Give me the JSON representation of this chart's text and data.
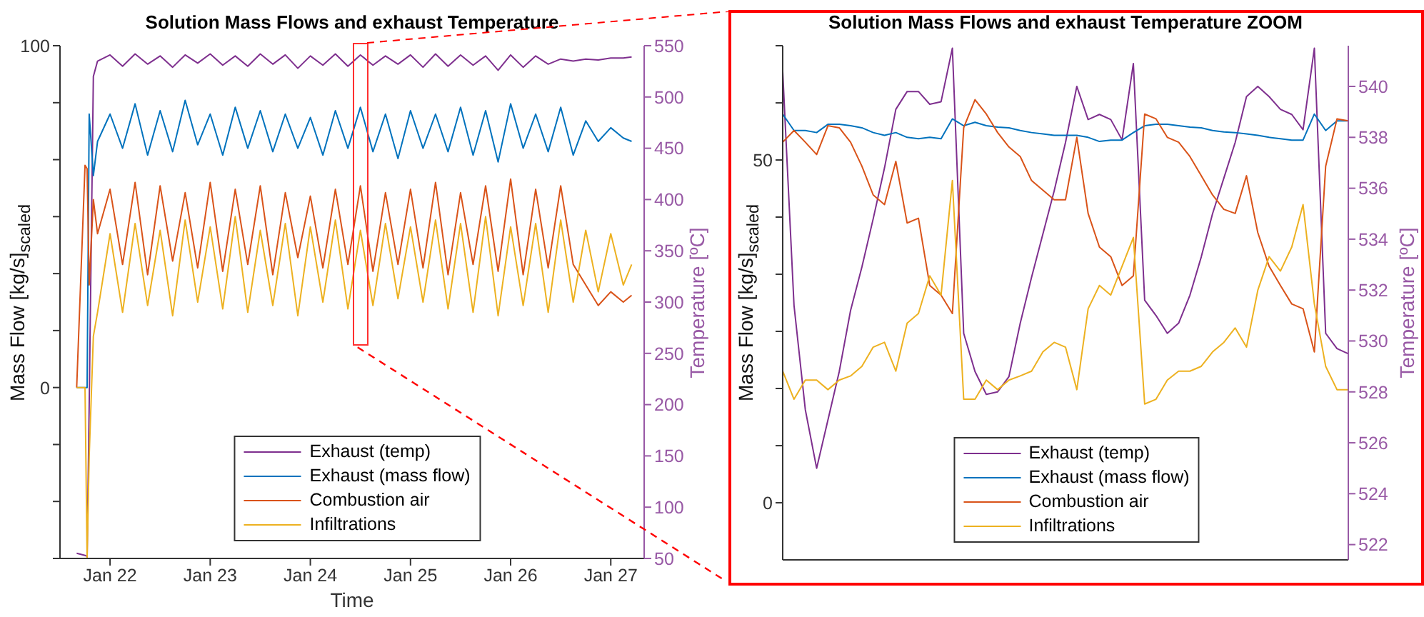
{
  "chart_data": [
    {
      "type": "line",
      "title": "Solution Mass Flows and exhaust Temperature",
      "xlabel": "Time",
      "ylabel": "Mass Flow [kg/s]$_{scaled}$",
      "y2label": "Temperature [ºC]",
      "legend": "bottom",
      "x": [
        "--01-21T16:00",
        "--01-21T18:00",
        "--01-21T18:30",
        "--01-21T19:00",
        "--01-21T20:00",
        "--01-21T21:00",
        "--01-22T00:00",
        "--01-22T03:00",
        "--01-22T06:00",
        "--01-22T09:00",
        "--01-22T12:00",
        "--01-22T15:00",
        "--01-22T18:00",
        "--01-22T21:00",
        "--01-23T00:00",
        "--01-23T03:00",
        "--01-23T06:00",
        "--01-23T09:00",
        "--01-23T12:00",
        "--01-23T15:00",
        "--01-23T18:00",
        "--01-23T21:00",
        "--01-24T00:00",
        "--01-24T03:00",
        "--01-24T06:00",
        "--01-24T09:00",
        "--01-24T12:00",
        "--01-24T15:00",
        "--01-24T18:00",
        "--01-24T21:00",
        "--01-25T00:00",
        "--01-25T03:00",
        "--01-25T06:00",
        "--01-25T09:00",
        "--01-25T12:00",
        "--01-25T15:00",
        "--01-25T18:00",
        "--01-25T21:00",
        "--01-26T00:00",
        "--01-26T03:00",
        "--01-26T06:00",
        "--01-26T09:00",
        "--01-26T12:00",
        "--01-26T15:00",
        "--01-26T18:00",
        "--01-26T21:00",
        "--01-27T00:00",
        "--01-27T03:00",
        "--01-27T05:00"
      ],
      "xlim": [
        "--01-21T12:00",
        "--01-27T08:00"
      ],
      "xticks": [
        {
          "value": "--01-22",
          "label": "Jan 22"
        },
        {
          "value": "--01-23",
          "label": "Jan 23"
        },
        {
          "value": "--01-24",
          "label": "Jan 24"
        },
        {
          "value": "--01-25",
          "label": "Jan 25"
        },
        {
          "value": "--01-26",
          "label": "Jan 26"
        },
        {
          "value": "--01-27",
          "label": "Jan 27"
        }
      ],
      "ylim": [
        -50,
        100
      ],
      "yticks": [
        {
          "value": -50,
          "label": null
        },
        {
          "value": -33.33,
          "label": null
        },
        {
          "value": -16.67,
          "label": null
        },
        0,
        {
          "value": 16.67,
          "label": null
        },
        {
          "value": 33.33,
          "label": null
        },
        {
          "value": 50,
          "label": null
        },
        {
          "value": 66.67,
          "label": null
        },
        {
          "value": 83.33,
          "label": null
        },
        100
      ],
      "y2lim": [
        50,
        550
      ],
      "y2ticks": [
        50,
        100,
        150,
        200,
        250,
        300,
        350,
        400,
        450,
        500,
        550
      ],
      "series": [
        {
          "name": "Exhaust (temp)",
          "color": "#7e2f8e",
          "axis": "y2",
          "values": [
            55,
            53,
            52,
            200,
            520,
            535,
            541,
            530,
            542,
            532,
            540,
            529,
            541,
            533,
            542,
            531,
            540,
            530,
            542,
            532,
            541,
            528,
            540,
            531,
            542,
            530,
            541,
            531,
            540,
            532,
            541,
            529,
            542,
            530,
            541,
            531,
            540,
            526,
            541,
            529,
            540,
            532,
            537,
            535,
            537,
            536,
            538,
            538,
            539
          ]
        },
        {
          "name": "Exhaust (mass flow)",
          "color": "#0072bd",
          "values": [
            0,
            0,
            0,
            80,
            62,
            72,
            80,
            70,
            83,
            68,
            81,
            69,
            84,
            71,
            80,
            68,
            82,
            70,
            81,
            69,
            80,
            70,
            79,
            68,
            81,
            70,
            82,
            69,
            80,
            67,
            81,
            70,
            80,
            69,
            82,
            68,
            81,
            66,
            83,
            70,
            80,
            69,
            82,
            68,
            78,
            72,
            76,
            73,
            72
          ]
        },
        {
          "name": "Combustion air",
          "color": "#d95319",
          "values": [
            0,
            65,
            64,
            30,
            55,
            45,
            58,
            36,
            60,
            33,
            59,
            37,
            57,
            35,
            60,
            34,
            58,
            36,
            59,
            33,
            57,
            38,
            56,
            35,
            58,
            36,
            59,
            34,
            57,
            36,
            58,
            35,
            60,
            33,
            57,
            36,
            59,
            34,
            61,
            33,
            58,
            35,
            59,
            36,
            30,
            24,
            28,
            25,
            27
          ]
        },
        {
          "name": "Infiltrations",
          "color": "#edb120",
          "values": [
            0,
            0,
            -50,
            -20,
            15,
            22,
            45,
            22,
            48,
            24,
            46,
            21,
            49,
            25,
            47,
            23,
            50,
            22,
            46,
            24,
            48,
            21,
            47,
            25,
            49,
            23,
            46,
            24,
            48,
            26,
            47,
            25,
            49,
            23,
            48,
            22,
            50,
            21,
            47,
            24,
            48,
            22,
            49,
            25,
            46,
            28,
            45,
            30,
            36
          ]
        }
      ]
    },
    {
      "type": "line",
      "title": "Solution Mass Flows and exhaust Temperature ZOOM",
      "ylabel": "Mass Flow [kg/s]$_{scaled}$",
      "y2label": "Temperature [ºC]",
      "legend": "bottom",
      "categories": [
        null,
        null,
        null,
        null,
        null,
        null,
        null,
        null,
        null,
        null,
        null,
        null,
        null,
        null,
        null,
        null,
        null,
        null,
        null,
        null,
        null,
        null,
        null,
        null,
        null,
        null,
        null,
        null,
        null,
        null,
        null,
        null,
        null,
        null,
        null,
        null,
        null,
        null,
        null,
        null,
        null,
        null,
        null,
        null,
        null,
        null,
        null,
        null,
        null,
        null,
        null
      ],
      "ylim": [
        -8.33,
        66.67
      ],
      "yticks": [
        0,
        {
          "value": 8.33,
          "label": null
        },
        {
          "value": 16.67,
          "label": null
        },
        {
          "value": 25,
          "label": null
        },
        {
          "value": 33.33,
          "label": null
        },
        {
          "value": 41.67,
          "label": null
        },
        50,
        {
          "value": 58.33,
          "label": null
        },
        {
          "value": 66.67,
          "label": null
        }
      ],
      "y2lim": [
        521.4,
        541.6
      ],
      "y2ticks": [
        522,
        524,
        526,
        528,
        530,
        532,
        534,
        536,
        538,
        540
      ],
      "series": [
        {
          "name": "Exhaust (temp)",
          "color": "#7e2f8e",
          "axis": "y2",
          "values": [
            540.6,
            531.4,
            527.3,
            525.0,
            526.9,
            528.8,
            531.2,
            532.9,
            534.8,
            536.8,
            539.1,
            539.8,
            539.8,
            539.3,
            539.4,
            541.5,
            530.3,
            528.8,
            527.9,
            528.0,
            528.6,
            530.7,
            532.5,
            534.2,
            535.9,
            537.8,
            540.0,
            538.7,
            538.9,
            538.7,
            537.9,
            540.9,
            531.6,
            531.0,
            530.3,
            530.7,
            531.8,
            533.3,
            535.0,
            536.4,
            537.8,
            539.6,
            540.0,
            539.6,
            539.1,
            538.9,
            538.3,
            541.5,
            530.3,
            529.7,
            529.5
          ]
        },
        {
          "name": "Exhaust (mass flow)",
          "color": "#0072bd",
          "values": [
            56.7,
            54.3,
            54.3,
            54.0,
            55.2,
            55.2,
            55.0,
            54.7,
            54.0,
            53.6,
            54.0,
            53.3,
            53.1,
            53.3,
            53.1,
            56.0,
            55.0,
            55.5,
            55.0,
            54.8,
            54.7,
            54.3,
            54.0,
            53.8,
            53.6,
            53.6,
            53.6,
            53.3,
            52.7,
            52.9,
            52.9,
            54.0,
            55.0,
            55.2,
            55.2,
            55.0,
            54.8,
            54.7,
            54.3,
            54.1,
            54.0,
            53.8,
            53.6,
            53.3,
            53.1,
            52.9,
            52.9,
            56.7,
            54.3,
            55.7,
            55.7
          ]
        },
        {
          "name": "Combustion air",
          "color": "#d95319",
          "values": [
            52.6,
            54.3,
            52.6,
            50.8,
            55.0,
            54.7,
            52.6,
            49.1,
            44.9,
            43.5,
            49.8,
            40.8,
            41.5,
            31.7,
            30.3,
            27.6,
            54.7,
            58.8,
            56.7,
            54.0,
            51.9,
            50.5,
            47.0,
            45.6,
            44.2,
            44.2,
            53.3,
            42.2,
            37.3,
            35.9,
            31.7,
            33.1,
            56.7,
            56.0,
            53.3,
            52.6,
            50.5,
            47.7,
            44.9,
            42.8,
            42.2,
            47.7,
            39.4,
            34.5,
            31.7,
            29.0,
            28.3,
            22.0,
            49.1,
            56.0,
            55.7
          ]
        },
        {
          "name": "Infiltrations",
          "color": "#edb120",
          "values": [
            19.2,
            15.1,
            17.9,
            17.9,
            16.5,
            17.9,
            18.5,
            19.9,
            22.7,
            23.4,
            19.2,
            26.2,
            27.6,
            33.1,
            30.3,
            47.0,
            15.1,
            15.1,
            17.9,
            16.5,
            17.9,
            18.5,
            19.2,
            22.0,
            23.4,
            22.7,
            16.5,
            28.3,
            31.7,
            30.3,
            34.5,
            38.7,
            14.4,
            15.1,
            17.9,
            19.2,
            19.2,
            19.9,
            22.0,
            23.4,
            25.5,
            22.7,
            31.0,
            35.9,
            33.8,
            37.3,
            43.5,
            29.0,
            19.9,
            16.5,
            16.5
          ]
        }
      ]
    }
  ]
}
